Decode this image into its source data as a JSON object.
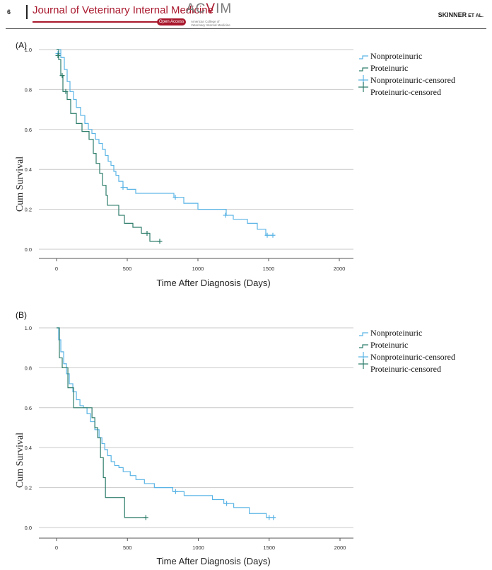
{
  "header": {
    "page_number": "6",
    "journal_title": "Journal of Veterinary Internal Medicine",
    "open_access": "Open Access",
    "logo_text_a": "AC",
    "logo_text_v": "V",
    "logo_text_b": "IM",
    "logo_subtitle_1": "American College of",
    "logo_subtitle_2": "Veterinary Internal Medicine",
    "author_main": "SKINNER",
    "author_suffix": " ET AL."
  },
  "colors": {
    "nonproteinuric": "#5ab4e5",
    "proteinuric": "#2e7d6b",
    "grid": "#c9c9c9",
    "axis": "#555555"
  },
  "chart_data": [
    {
      "panel_label": "(A)",
      "type": "line",
      "subtype": "kaplan-meier-step",
      "xlabel": "Time After Diagnosis (Days)",
      "ylabel": "Cum Survival",
      "xlim": [
        0,
        2000
      ],
      "ylim": [
        0,
        1.0
      ],
      "xticks": [
        "0",
        "500",
        "1000",
        "1500",
        "2000"
      ],
      "yticks": [
        "0.0",
        "0.2",
        "0.4",
        "0.6",
        "0.8",
        "1.0"
      ],
      "legend": [
        "Nonproteinuric",
        "Proteinuric",
        "Nonproteinuric-censored",
        "Proteinuric-censored"
      ],
      "series": [
        {
          "name": "Nonproteinuric",
          "x": [
            0,
            30,
            55,
            75,
            95,
            120,
            140,
            170,
            200,
            225,
            250,
            275,
            300,
            325,
            345,
            365,
            385,
            405,
            420,
            440,
            470,
            500,
            560,
            750,
            830,
            900,
            1000,
            1100,
            1200,
            1250,
            1350,
            1420,
            1480,
            1530
          ],
          "y": [
            1.0,
            0.96,
            0.9,
            0.84,
            0.79,
            0.75,
            0.71,
            0.67,
            0.63,
            0.6,
            0.58,
            0.55,
            0.53,
            0.5,
            0.47,
            0.44,
            0.42,
            0.39,
            0.37,
            0.34,
            0.31,
            0.3,
            0.28,
            0.28,
            0.26,
            0.23,
            0.2,
            0.2,
            0.17,
            0.15,
            0.13,
            0.1,
            0.07,
            0.07
          ],
          "censored": [
            [
              10,
              0.98
            ],
            [
              470,
              0.31
            ],
            [
              840,
              0.26
            ],
            [
              1195,
              0.17
            ],
            [
              1490,
              0.07
            ],
            [
              1530,
              0.07
            ]
          ]
        },
        {
          "name": "Proteinuric",
          "x": [
            0,
            15,
            30,
            45,
            75,
            100,
            140,
            180,
            230,
            260,
            280,
            305,
            325,
            350,
            360,
            420,
            440,
            480,
            540,
            600,
            660,
            730
          ],
          "y": [
            1.0,
            0.95,
            0.87,
            0.79,
            0.75,
            0.68,
            0.63,
            0.59,
            0.55,
            0.48,
            0.43,
            0.38,
            0.32,
            0.27,
            0.22,
            0.22,
            0.17,
            0.13,
            0.11,
            0.08,
            0.04,
            0.04
          ],
          "censored": [
            [
              10,
              0.97
            ],
            [
              40,
              0.87
            ],
            [
              65,
              0.79
            ],
            [
              640,
              0.08
            ],
            [
              730,
              0.04
            ]
          ]
        }
      ]
    },
    {
      "panel_label": "(B)",
      "type": "line",
      "subtype": "kaplan-meier-step",
      "xlabel": "Time After Diagnosis (Days)",
      "ylabel": "Cum Survival",
      "xlim": [
        0,
        2000
      ],
      "ylim": [
        0,
        1.0
      ],
      "xticks": [
        "0",
        "500",
        "1000",
        "1500",
        "2000"
      ],
      "yticks": [
        "0.0",
        "0.2",
        "0.4",
        "0.6",
        "0.8",
        "1.0"
      ],
      "legend": [
        "Nonproteinuric",
        "Proteinuric",
        "Nonproteinuric-censored",
        "Proteinuric-censored"
      ],
      "series": [
        {
          "name": "Nonproteinuric",
          "x": [
            0,
            15,
            30,
            50,
            70,
            90,
            115,
            140,
            165,
            190,
            215,
            240,
            270,
            300,
            320,
            340,
            360,
            385,
            410,
            440,
            470,
            520,
            560,
            620,
            690,
            820,
            900,
            1000,
            1100,
            1180,
            1250,
            1360,
            1480,
            1540
          ],
          "y": [
            1.0,
            0.94,
            0.88,
            0.82,
            0.77,
            0.72,
            0.68,
            0.64,
            0.61,
            0.6,
            0.57,
            0.53,
            0.49,
            0.45,
            0.42,
            0.39,
            0.36,
            0.33,
            0.31,
            0.3,
            0.28,
            0.26,
            0.24,
            0.22,
            0.2,
            0.18,
            0.16,
            0.16,
            0.14,
            0.12,
            0.1,
            0.07,
            0.05,
            0.05
          ],
          "censored": [
            [
              840,
              0.18
            ],
            [
              1200,
              0.12
            ],
            [
              1500,
              0.05
            ],
            [
              1530,
              0.05
            ]
          ]
        },
        {
          "name": "Proteinuric",
          "x": [
            0,
            20,
            40,
            80,
            120,
            180,
            250,
            270,
            290,
            310,
            330,
            345,
            480,
            630
          ],
          "y": [
            1.0,
            0.85,
            0.8,
            0.7,
            0.6,
            0.6,
            0.55,
            0.5,
            0.45,
            0.35,
            0.25,
            0.15,
            0.05,
            0.05
          ],
          "censored": [
            [
              630,
              0.05
            ]
          ]
        }
      ]
    }
  ]
}
